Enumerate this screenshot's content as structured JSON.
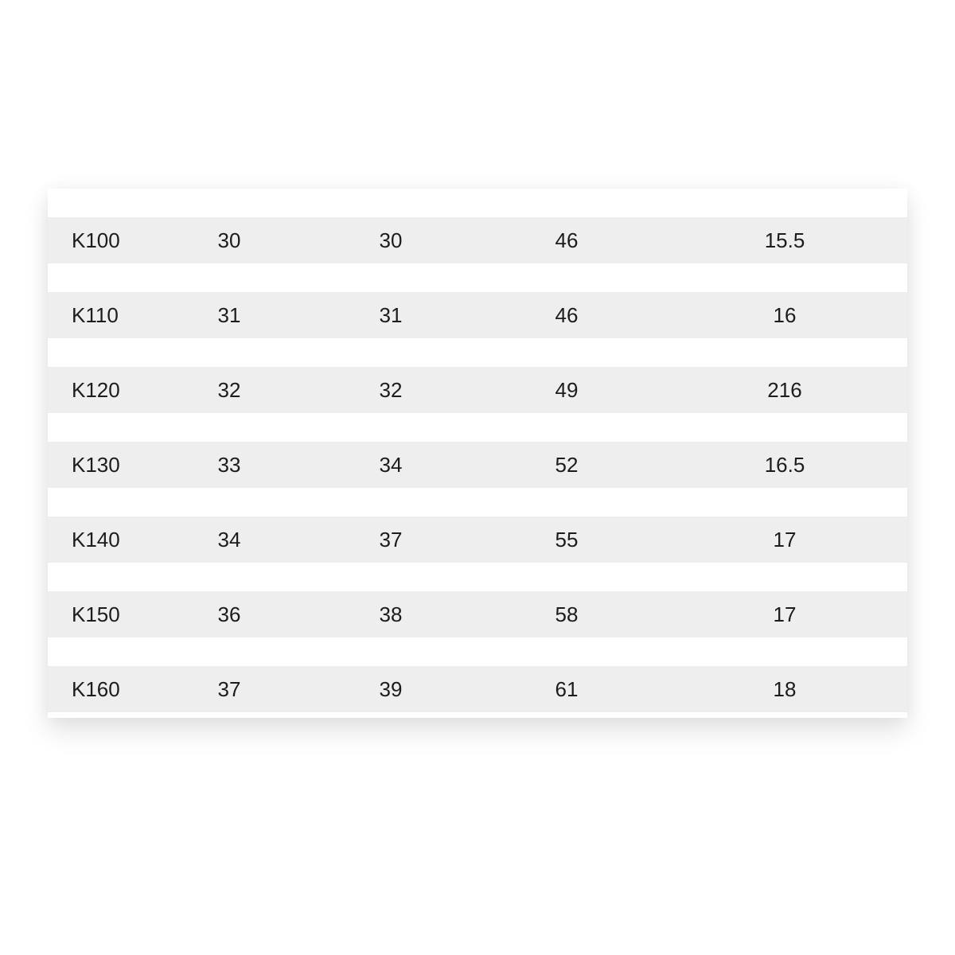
{
  "table": {
    "rows": [
      [
        "K100",
        "30",
        "30",
        "46",
        "15.5"
      ],
      [
        "K110",
        "31",
        "31",
        "46",
        "16"
      ],
      [
        "K120",
        "32",
        "32",
        "49",
        "216"
      ],
      [
        "K130",
        "33",
        "34",
        "52",
        "16.5"
      ],
      [
        "K140",
        "34",
        "37",
        "55",
        "17"
      ],
      [
        "K150",
        "36",
        "38",
        "58",
        "17"
      ],
      [
        "K160",
        "37",
        "39",
        "61",
        "18"
      ]
    ]
  },
  "colors": {
    "row_band": "#eeeeee",
    "text": "#1c1c1c"
  }
}
